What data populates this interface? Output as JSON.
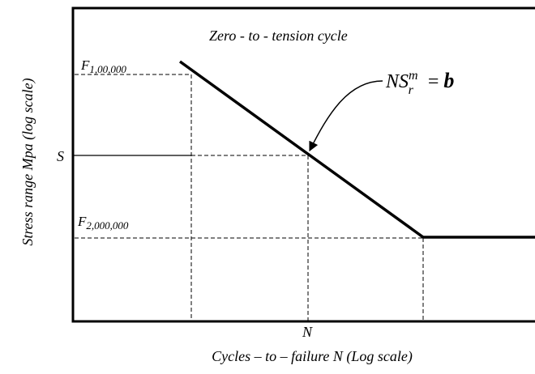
{
  "title": "Zero - to - tension cycle",
  "f1": {
    "base": "F",
    "sub": "1,00,000"
  },
  "f2": {
    "base": "F",
    "sub": "2,000,000"
  },
  "s_label": "S",
  "n_label": "N",
  "equation": {
    "base": "NS",
    "sub": "r",
    "sup": "m",
    "rhs": "= ",
    "b": "b"
  },
  "y_axis_label": "Stress range  Mpa  (log scale)",
  "x_axis_label": "Cycles – to – failure N (Log scale)"
}
